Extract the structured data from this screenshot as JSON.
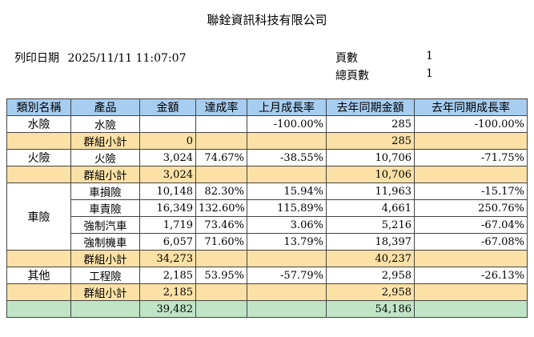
{
  "report": {
    "company": "聯銓資訊科技有限公司",
    "print_date_label": "列印日期",
    "print_date": "2025/11/11 11:07:07",
    "page_label": "頁數",
    "page": "1",
    "total_pages_label": "總頁數",
    "total_pages": "1"
  },
  "table": {
    "headers": [
      "類別名稱",
      "產品",
      "金額",
      "達成率",
      "上月成長率",
      "去年同期金額",
      "去年同期成長率"
    ],
    "subtotal_label": "群組小計",
    "groups": [
      {
        "category": "水險",
        "rows": [
          {
            "product": "水險",
            "amount": "",
            "achieve": "",
            "mom": "-100.00%",
            "ly_amount": "285",
            "yoy": "-100.00%"
          }
        ],
        "subtotal": {
          "amount": "0",
          "ly_amount": "285"
        }
      },
      {
        "category": "火險",
        "rows": [
          {
            "product": "火險",
            "amount": "3,024",
            "achieve": "74.67%",
            "mom": "-38.55%",
            "ly_amount": "10,706",
            "yoy": "-71.75%"
          }
        ],
        "subtotal": {
          "amount": "3,024",
          "ly_amount": "10,706"
        }
      },
      {
        "category": "車險",
        "rows": [
          {
            "product": "車損險",
            "amount": "10,148",
            "achieve": "82.30%",
            "mom": "15.94%",
            "ly_amount": "11,963",
            "yoy": "-15.17%"
          },
          {
            "product": "車責險",
            "amount": "16,349",
            "achieve": "132.60%",
            "mom": "115.89%",
            "ly_amount": "4,661",
            "yoy": "250.76%"
          },
          {
            "product": "強制汽車",
            "amount": "1,719",
            "achieve": "73.46%",
            "mom": "3.06%",
            "ly_amount": "5,216",
            "yoy": "-67.04%"
          },
          {
            "product": "強制機車",
            "amount": "6,057",
            "achieve": "71.60%",
            "mom": "13.79%",
            "ly_amount": "18,397",
            "yoy": "-67.08%"
          }
        ],
        "subtotal": {
          "amount": "34,273",
          "ly_amount": "40,237"
        }
      },
      {
        "category": "其他",
        "rows": [
          {
            "product": "工程險",
            "amount": "2,185",
            "achieve": "53.95%",
            "mom": "-57.79%",
            "ly_amount": "2,958",
            "yoy": "-26.13%"
          }
        ],
        "subtotal": {
          "amount": "2,185",
          "ly_amount": "2,958"
        }
      }
    ],
    "grand_total": {
      "amount": "39,482",
      "ly_amount": "54,186"
    }
  }
}
